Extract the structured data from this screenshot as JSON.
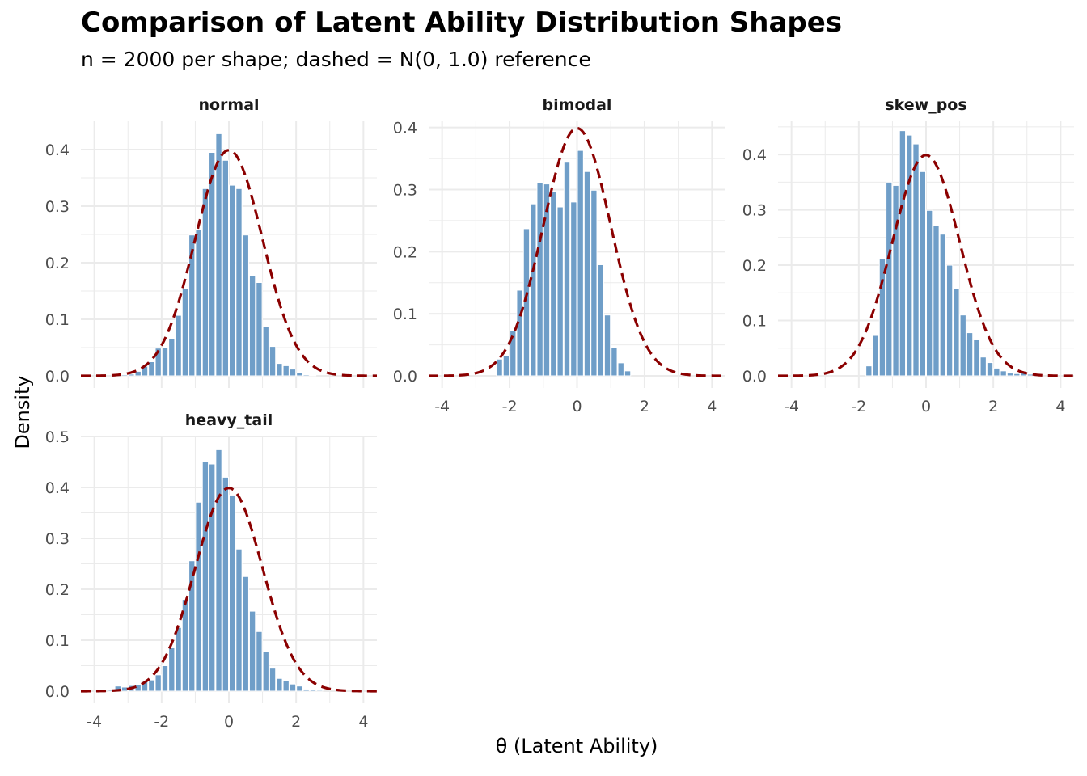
{
  "chart_data": {
    "type": "bar",
    "title": "Comparison of Latent Ability Distribution Shapes",
    "subtitle": "n = 2000 per shape; dashed = N(0, 1.0) reference",
    "xlabel": "θ (Latent Ability)",
    "ylabel": "Density",
    "xlim": [
      -4.4,
      4.4
    ],
    "x_ticks": [
      -4,
      -2,
      0,
      2,
      4
    ],
    "grid": true,
    "bin_width": 0.2,
    "colors": {
      "bar": "#6f9ec8",
      "reference": "#8b0000",
      "grid": "#ebebeb"
    },
    "reference": {
      "type": "normal",
      "mean": 0,
      "sd": 1.0,
      "style": "dashed"
    },
    "panels": [
      {
        "name": "normal",
        "ylim": [
          0,
          0.45
        ],
        "y_ticks": [
          0.0,
          0.1,
          0.2,
          0.3,
          0.4
        ],
        "y_tick_labels": [
          "0.0",
          "0.1",
          "0.2",
          "0.3",
          "0.4"
        ],
        "show_x_ticks": false,
        "bins": [
          {
            "x": -3.2,
            "y": 0.002
          },
          {
            "x": -3.0,
            "y": 0.003
          },
          {
            "x": -2.8,
            "y": 0.008
          },
          {
            "x": -2.6,
            "y": 0.017
          },
          {
            "x": -2.4,
            "y": 0.025
          },
          {
            "x": -2.2,
            "y": 0.049
          },
          {
            "x": -2.0,
            "y": 0.05
          },
          {
            "x": -1.8,
            "y": 0.065
          },
          {
            "x": -1.6,
            "y": 0.107
          },
          {
            "x": -1.4,
            "y": 0.155
          },
          {
            "x": -1.2,
            "y": 0.249
          },
          {
            "x": -1.0,
            "y": 0.258
          },
          {
            "x": -0.8,
            "y": 0.331
          },
          {
            "x": -0.6,
            "y": 0.395
          },
          {
            "x": -0.4,
            "y": 0.428
          },
          {
            "x": -0.2,
            "y": 0.381
          },
          {
            "x": 0.0,
            "y": 0.337
          },
          {
            "x": 0.2,
            "y": 0.331
          },
          {
            "x": 0.4,
            "y": 0.249
          },
          {
            "x": 0.6,
            "y": 0.177
          },
          {
            "x": 0.8,
            "y": 0.165
          },
          {
            "x": 1.0,
            "y": 0.087
          },
          {
            "x": 1.2,
            "y": 0.052
          },
          {
            "x": 1.4,
            "y": 0.022
          },
          {
            "x": 1.6,
            "y": 0.018
          },
          {
            "x": 1.8,
            "y": 0.012
          },
          {
            "x": 2.0,
            "y": 0.005
          },
          {
            "x": 2.2,
            "y": 0.002
          },
          {
            "x": 2.4,
            "y": 0.001
          }
        ]
      },
      {
        "name": "bimodal",
        "ylim": [
          0,
          0.41
        ],
        "y_ticks": [
          0.0,
          0.1,
          0.2,
          0.3,
          0.4
        ],
        "y_tick_labels": [
          "0.0",
          "0.1",
          "0.2",
          "0.3",
          "0.4"
        ],
        "show_x_ticks": true,
        "bins": [
          {
            "x": -2.4,
            "y": 0.027
          },
          {
            "x": -2.2,
            "y": 0.032
          },
          {
            "x": -2.0,
            "y": 0.073
          },
          {
            "x": -1.8,
            "y": 0.138
          },
          {
            "x": -1.6,
            "y": 0.237
          },
          {
            "x": -1.4,
            "y": 0.277
          },
          {
            "x": -1.2,
            "y": 0.311
          },
          {
            "x": -1.0,
            "y": 0.309
          },
          {
            "x": -0.8,
            "y": 0.297
          },
          {
            "x": -0.6,
            "y": 0.272
          },
          {
            "x": -0.4,
            "y": 0.344
          },
          {
            "x": -0.2,
            "y": 0.28
          },
          {
            "x": 0.0,
            "y": 0.363
          },
          {
            "x": 0.2,
            "y": 0.329
          },
          {
            "x": 0.4,
            "y": 0.299
          },
          {
            "x": 0.6,
            "y": 0.179
          },
          {
            "x": 0.8,
            "y": 0.098
          },
          {
            "x": 1.0,
            "y": 0.046
          },
          {
            "x": 1.2,
            "y": 0.021
          },
          {
            "x": 1.4,
            "y": 0.008
          }
        ]
      },
      {
        "name": "skew_pos",
        "ylim": [
          0,
          0.46
        ],
        "y_ticks": [
          0.0,
          0.1,
          0.2,
          0.3,
          0.4
        ],
        "y_tick_labels": [
          "0.0",
          "0.1",
          "0.2",
          "0.3",
          "0.4"
        ],
        "show_x_ticks": true,
        "bins": [
          {
            "x": -1.8,
            "y": 0.018
          },
          {
            "x": -1.6,
            "y": 0.073
          },
          {
            "x": -1.4,
            "y": 0.212
          },
          {
            "x": -1.2,
            "y": 0.35
          },
          {
            "x": -1.0,
            "y": 0.344
          },
          {
            "x": -0.8,
            "y": 0.443
          },
          {
            "x": -0.6,
            "y": 0.435
          },
          {
            "x": -0.4,
            "y": 0.419
          },
          {
            "x": -0.2,
            "y": 0.369
          },
          {
            "x": 0.0,
            "y": 0.299
          },
          {
            "x": 0.2,
            "y": 0.271
          },
          {
            "x": 0.4,
            "y": 0.256
          },
          {
            "x": 0.6,
            "y": 0.2
          },
          {
            "x": 0.8,
            "y": 0.157
          },
          {
            "x": 1.0,
            "y": 0.11
          },
          {
            "x": 1.2,
            "y": 0.078
          },
          {
            "x": 1.4,
            "y": 0.065
          },
          {
            "x": 1.6,
            "y": 0.034
          },
          {
            "x": 1.8,
            "y": 0.024
          },
          {
            "x": 2.0,
            "y": 0.014
          },
          {
            "x": 2.2,
            "y": 0.009
          },
          {
            "x": 2.4,
            "y": 0.005
          },
          {
            "x": 2.6,
            "y": 0.004
          },
          {
            "x": 2.8,
            "y": 0.008
          },
          {
            "x": 3.0,
            "y": 0.003
          },
          {
            "x": 3.2,
            "y": 0.002
          }
        ]
      },
      {
        "name": "heavy_tail",
        "ylim": [
          0,
          0.5
        ],
        "y_ticks": [
          0.0,
          0.1,
          0.2,
          0.3,
          0.4,
          0.5
        ],
        "y_tick_labels": [
          "0.0",
          "0.1",
          "0.2",
          "0.3",
          "0.4",
          "0.5"
        ],
        "show_x_ticks": true,
        "bins": [
          {
            "x": -3.6,
            "y": 0.003
          },
          {
            "x": -3.4,
            "y": 0.01
          },
          {
            "x": -3.2,
            "y": 0.008
          },
          {
            "x": -3.0,
            "y": 0.011
          },
          {
            "x": -2.8,
            "y": 0.012
          },
          {
            "x": -2.6,
            "y": 0.019
          },
          {
            "x": -2.4,
            "y": 0.022
          },
          {
            "x": -2.2,
            "y": 0.032
          },
          {
            "x": -2.0,
            "y": 0.05
          },
          {
            "x": -1.8,
            "y": 0.085
          },
          {
            "x": -1.6,
            "y": 0.125
          },
          {
            "x": -1.4,
            "y": 0.18
          },
          {
            "x": -1.2,
            "y": 0.256
          },
          {
            "x": -1.0,
            "y": 0.371
          },
          {
            "x": -0.8,
            "y": 0.451
          },
          {
            "x": -0.6,
            "y": 0.446
          },
          {
            "x": -0.4,
            "y": 0.474
          },
          {
            "x": -0.2,
            "y": 0.42
          },
          {
            "x": 0.0,
            "y": 0.385
          },
          {
            "x": 0.2,
            "y": 0.279
          },
          {
            "x": 0.4,
            "y": 0.225
          },
          {
            "x": 0.6,
            "y": 0.157
          },
          {
            "x": 0.8,
            "y": 0.117
          },
          {
            "x": 1.0,
            "y": 0.077
          },
          {
            "x": 1.2,
            "y": 0.045
          },
          {
            "x": 1.4,
            "y": 0.025
          },
          {
            "x": 1.6,
            "y": 0.02
          },
          {
            "x": 1.8,
            "y": 0.014
          },
          {
            "x": 2.0,
            "y": 0.01
          },
          {
            "x": 2.2,
            "y": 0.004
          },
          {
            "x": 2.4,
            "y": 0.003
          },
          {
            "x": 2.6,
            "y": 0.002
          }
        ]
      }
    ]
  }
}
